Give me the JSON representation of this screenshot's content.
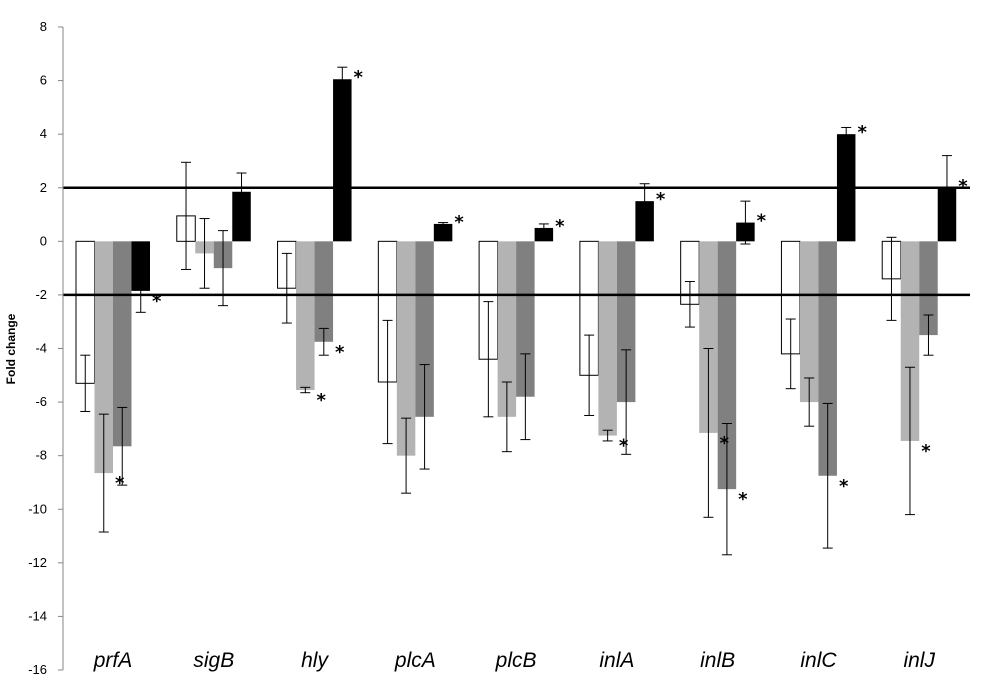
{
  "chart_data": {
    "type": "bar",
    "ylabel": "Fold change",
    "ylim": [
      -16,
      8
    ],
    "yticks": [
      "8",
      "6",
      "4",
      "2",
      "0",
      "-2",
      "-4",
      "-6",
      "-8",
      "-10",
      "-12",
      "-14",
      "-16"
    ],
    "categories": [
      "prfA",
      "sigB",
      "hly",
      "plcA",
      "plcB",
      "inlA",
      "inlB",
      "inlC",
      "inlJ"
    ],
    "reference_lines": [
      2,
      -2
    ],
    "colors": [
      "#ffffff",
      "#b3b3b3",
      "#808080",
      "#000000"
    ],
    "series": [
      {
        "values": [
          -5.3,
          0.95,
          -1.75,
          -5.25,
          -4.4,
          -5.0,
          -2.35,
          -4.2,
          -1.4
        ],
        "errors": [
          1.05,
          2.0,
          1.3,
          2.3,
          2.15,
          1.5,
          0.85,
          1.3,
          1.55
        ],
        "significant": [
          false,
          false,
          false,
          false,
          false,
          false,
          false,
          false,
          false
        ]
      },
      {
        "values": [
          -8.65,
          -0.45,
          -5.55,
          -8.0,
          -6.55,
          -7.25,
          -7.15,
          -6.0,
          -7.45
        ],
        "errors": [
          2.2,
          1.3,
          0.1,
          1.4,
          1.3,
          0.2,
          3.15,
          0.9,
          2.75
        ],
        "significant": [
          true,
          false,
          true,
          false,
          false,
          true,
          true,
          false,
          true
        ]
      },
      {
        "values": [
          -7.65,
          -1.0,
          -3.75,
          -6.55,
          -5.8,
          -6.0,
          -9.25,
          -8.75,
          -3.5
        ],
        "errors": [
          1.45,
          1.4,
          0.5,
          1.95,
          1.6,
          1.95,
          2.45,
          2.7,
          0.75
        ],
        "significant": [
          false,
          false,
          true,
          false,
          false,
          false,
          true,
          true,
          false
        ]
      },
      {
        "values": [
          -1.85,
          1.85,
          6.05,
          0.65,
          0.5,
          1.5,
          0.7,
          4.0,
          2.0
        ],
        "errors": [
          0.8,
          0.7,
          0.45,
          0.05,
          0.15,
          0.65,
          0.8,
          0.25,
          1.2
        ],
        "significant": [
          true,
          false,
          true,
          true,
          true,
          true,
          true,
          true,
          true
        ]
      }
    ],
    "significance_marker": "*",
    "legend": "none",
    "grid": false
  }
}
